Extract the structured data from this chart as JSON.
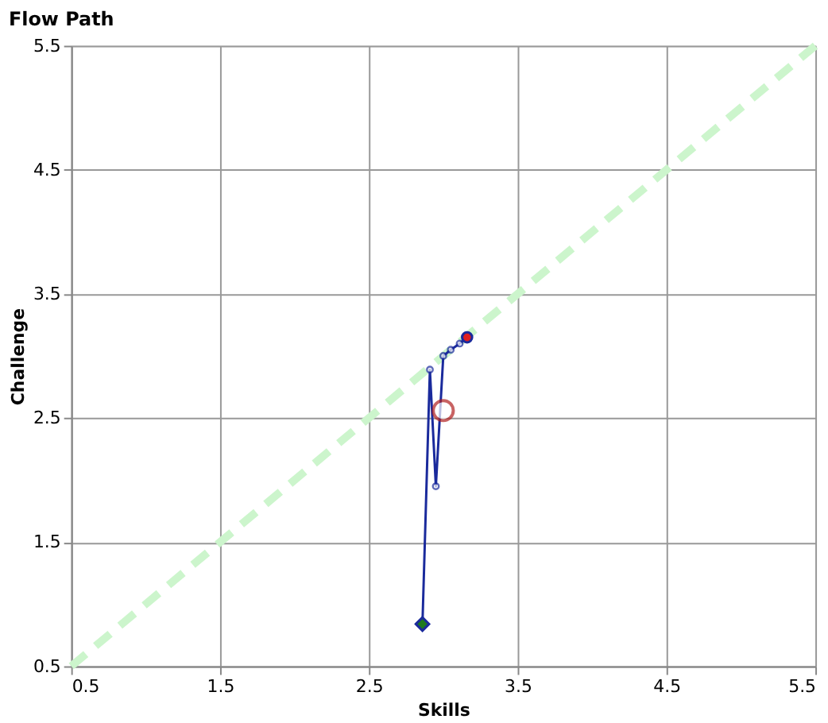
{
  "chart_data": {
    "type": "line",
    "title": "Flow Path",
    "xlabel": "Skills",
    "ylabel": "Challenge",
    "xlim": [
      0.5,
      5.5
    ],
    "xticks": [
      0.5,
      1.5,
      2.5,
      3.5,
      4.5,
      5.5
    ],
    "ylim": [
      0.5,
      5.5
    ],
    "yticks": [
      0.5,
      1.5,
      2.5,
      3.5,
      4.5,
      5.5
    ],
    "grid": true,
    "series": [
      {
        "color": "#ccf5cc",
        "line_style": "dashed",
        "marker": "none",
        "x": [
          0.5,
          5.5
        ],
        "values": [
          0.5,
          5.5
        ]
      },
      {
        "color": "#1a2a9c",
        "line_style": "solid",
        "marker": "circle",
        "x": [
          2.86,
          2.91,
          2.95,
          3.0,
          3.05,
          3.11,
          3.16
        ],
        "values": [
          0.84,
          2.89,
          1.95,
          3.0,
          3.05,
          3.1,
          3.15
        ]
      },
      {
        "type": "scatter",
        "color": "#1e7a1e",
        "marker": "diamond",
        "x": [
          2.86
        ],
        "values": [
          0.84
        ]
      },
      {
        "type": "scatter",
        "color": "#e02020",
        "marker": "circle",
        "x": [
          3.16
        ],
        "values": [
          3.15
        ]
      },
      {
        "type": "scatter",
        "color": "#b22222",
        "marker": "circle",
        "x": [
          3.0
        ],
        "values": [
          2.56
        ]
      }
    ]
  }
}
